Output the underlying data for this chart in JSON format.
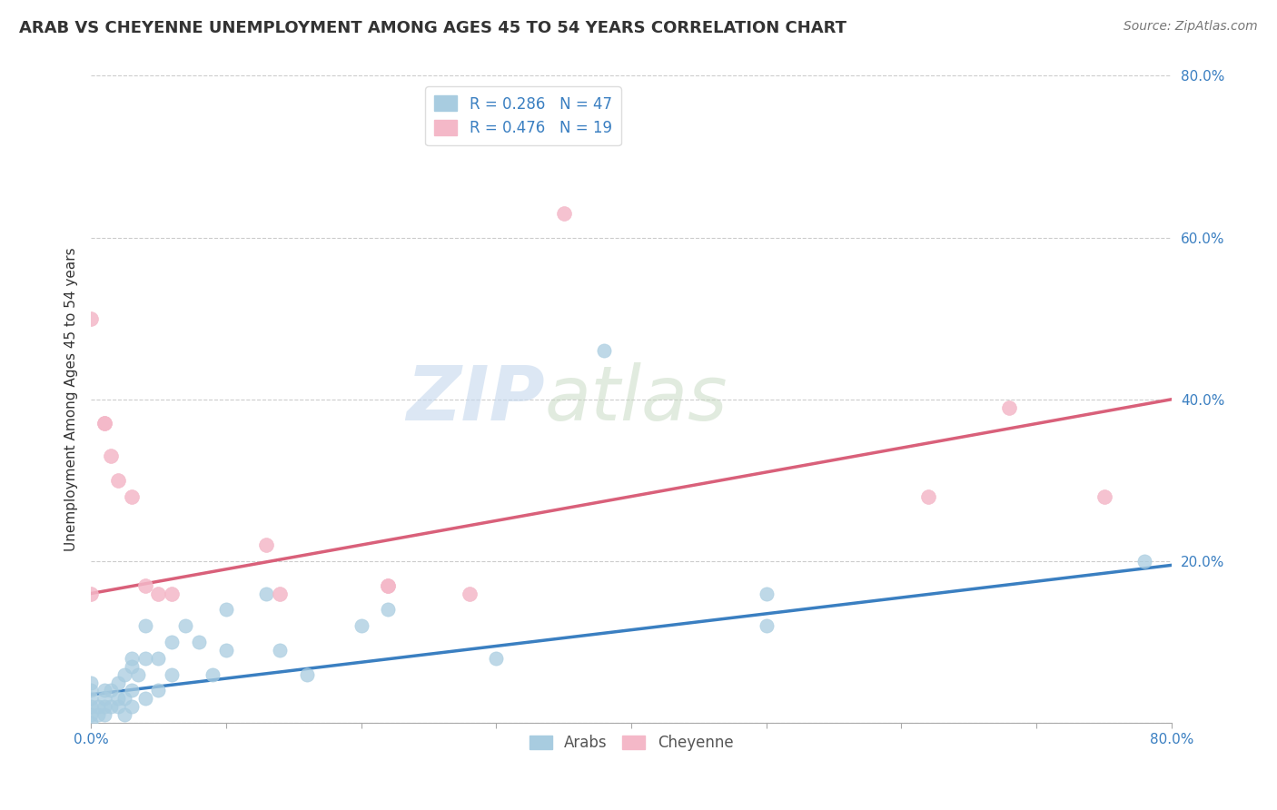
{
  "title": "ARAB VS CHEYENNE UNEMPLOYMENT AMONG AGES 45 TO 54 YEARS CORRELATION CHART",
  "source": "Source: ZipAtlas.com",
  "ylabel": "Unemployment Among Ages 45 to 54 years",
  "xlim": [
    0.0,
    0.8
  ],
  "ylim": [
    0.0,
    0.8
  ],
  "xticks": [
    0.0,
    0.1,
    0.2,
    0.3,
    0.4,
    0.5,
    0.6,
    0.7,
    0.8
  ],
  "yticks": [
    0.0,
    0.2,
    0.4,
    0.6,
    0.8
  ],
  "xtick_labels": [
    "0.0%",
    "",
    "",
    "",
    "",
    "",
    "",
    "",
    "80.0%"
  ],
  "ytick_labels": [
    "",
    "20.0%",
    "40.0%",
    "60.0%",
    "80.0%"
  ],
  "arab_R": 0.286,
  "arab_N": 47,
  "cheyenne_R": 0.476,
  "cheyenne_N": 19,
  "arab_color": "#a8cce0",
  "cheyenne_color": "#f4b8c8",
  "arab_line_color": "#3a7fc1",
  "cheyenne_line_color": "#d9607a",
  "arab_scatter_x": [
    0.0,
    0.0,
    0.0,
    0.0,
    0.0,
    0.0,
    0.005,
    0.005,
    0.01,
    0.01,
    0.01,
    0.01,
    0.015,
    0.015,
    0.02,
    0.02,
    0.02,
    0.025,
    0.025,
    0.025,
    0.03,
    0.03,
    0.03,
    0.03,
    0.035,
    0.04,
    0.04,
    0.04,
    0.05,
    0.05,
    0.06,
    0.06,
    0.07,
    0.08,
    0.09,
    0.1,
    0.1,
    0.13,
    0.14,
    0.16,
    0.2,
    0.22,
    0.3,
    0.38,
    0.5,
    0.5,
    0.78
  ],
  "arab_scatter_y": [
    0.0,
    0.01,
    0.02,
    0.03,
    0.04,
    0.05,
    0.01,
    0.02,
    0.01,
    0.02,
    0.03,
    0.04,
    0.02,
    0.04,
    0.02,
    0.03,
    0.05,
    0.01,
    0.03,
    0.06,
    0.02,
    0.04,
    0.07,
    0.08,
    0.06,
    0.03,
    0.08,
    0.12,
    0.04,
    0.08,
    0.06,
    0.1,
    0.12,
    0.1,
    0.06,
    0.09,
    0.14,
    0.16,
    0.09,
    0.06,
    0.12,
    0.14,
    0.08,
    0.46,
    0.12,
    0.16,
    0.2
  ],
  "cheyenne_scatter_x": [
    0.0,
    0.0,
    0.01,
    0.01,
    0.015,
    0.02,
    0.03,
    0.04,
    0.05,
    0.06,
    0.13,
    0.14,
    0.22,
    0.22,
    0.28,
    0.35,
    0.62,
    0.68,
    0.75
  ],
  "cheyenne_scatter_y": [
    0.16,
    0.5,
    0.37,
    0.37,
    0.33,
    0.3,
    0.28,
    0.17,
    0.16,
    0.16,
    0.22,
    0.16,
    0.17,
    0.17,
    0.16,
    0.63,
    0.28,
    0.39,
    0.28
  ],
  "arab_trendline_y": [
    0.035,
    0.195
  ],
  "cheyenne_trendline_y": [
    0.16,
    0.4
  ],
  "background_color": "#ffffff",
  "grid_color": "#cccccc",
  "watermark_zip": "ZIP",
  "watermark_atlas": "atlas",
  "legend_arab_label": "Arabs",
  "legend_cheyenne_label": "Cheyenne"
}
